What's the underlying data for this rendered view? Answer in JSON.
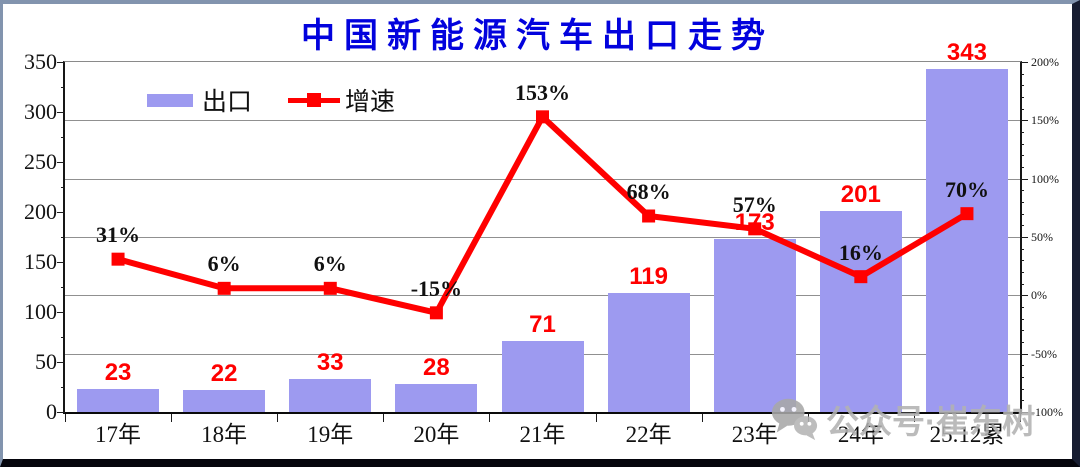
{
  "title": "中国新能源汽车出口走势",
  "legend": {
    "bar_label": "出口",
    "line_label": "增速"
  },
  "watermark": {
    "icon": "wechat-icon",
    "text": "公众号·崔东树"
  },
  "colors": {
    "bar": "#9d9af0",
    "line": "#ff0000",
    "bar_label": "#ff0000",
    "line_label": "#101010",
    "title": "#0202dd",
    "grid": "#909090",
    "watermark": "#b2b2b2"
  },
  "chart_data": {
    "type": "bar",
    "subtype": "combo-bar-line-dual-axis",
    "title": "中国新能源汽车出口走势",
    "categories": [
      "17年",
      "18年",
      "19年",
      "20年",
      "21年",
      "22年",
      "23年",
      "24年",
      "25.12累"
    ],
    "series": [
      {
        "name": "出口",
        "type": "bar",
        "axis": "left",
        "values": [
          23,
          22,
          33,
          28,
          71,
          119,
          173,
          201,
          343
        ],
        "labels": [
          "23",
          "22",
          "33",
          "28",
          "71",
          "119",
          "173",
          "201",
          "343"
        ]
      },
      {
        "name": "增速",
        "type": "line",
        "axis": "right",
        "values": [
          31,
          6,
          6,
          -15,
          153,
          68,
          57,
          16,
          70
        ],
        "labels": [
          "31%",
          "6%",
          "6%",
          "-15%",
          "153%",
          "68%",
          "57%",
          "16%",
          "70%"
        ]
      }
    ],
    "left_axis": {
      "min": 0,
      "max": 350,
      "tick_step": 50,
      "ticks": [
        "350",
        "300",
        "250",
        "200",
        "150",
        "100",
        "50",
        "0"
      ]
    },
    "right_axis": {
      "min": -100,
      "max": 200,
      "tick_step": 50,
      "ticks": [
        "200%",
        "150%",
        "100%",
        "50%",
        "0%",
        "-50%",
        "-100%"
      ]
    },
    "grid": true,
    "legend_position": "top-inside",
    "xlabel": "",
    "ylabel": ""
  }
}
